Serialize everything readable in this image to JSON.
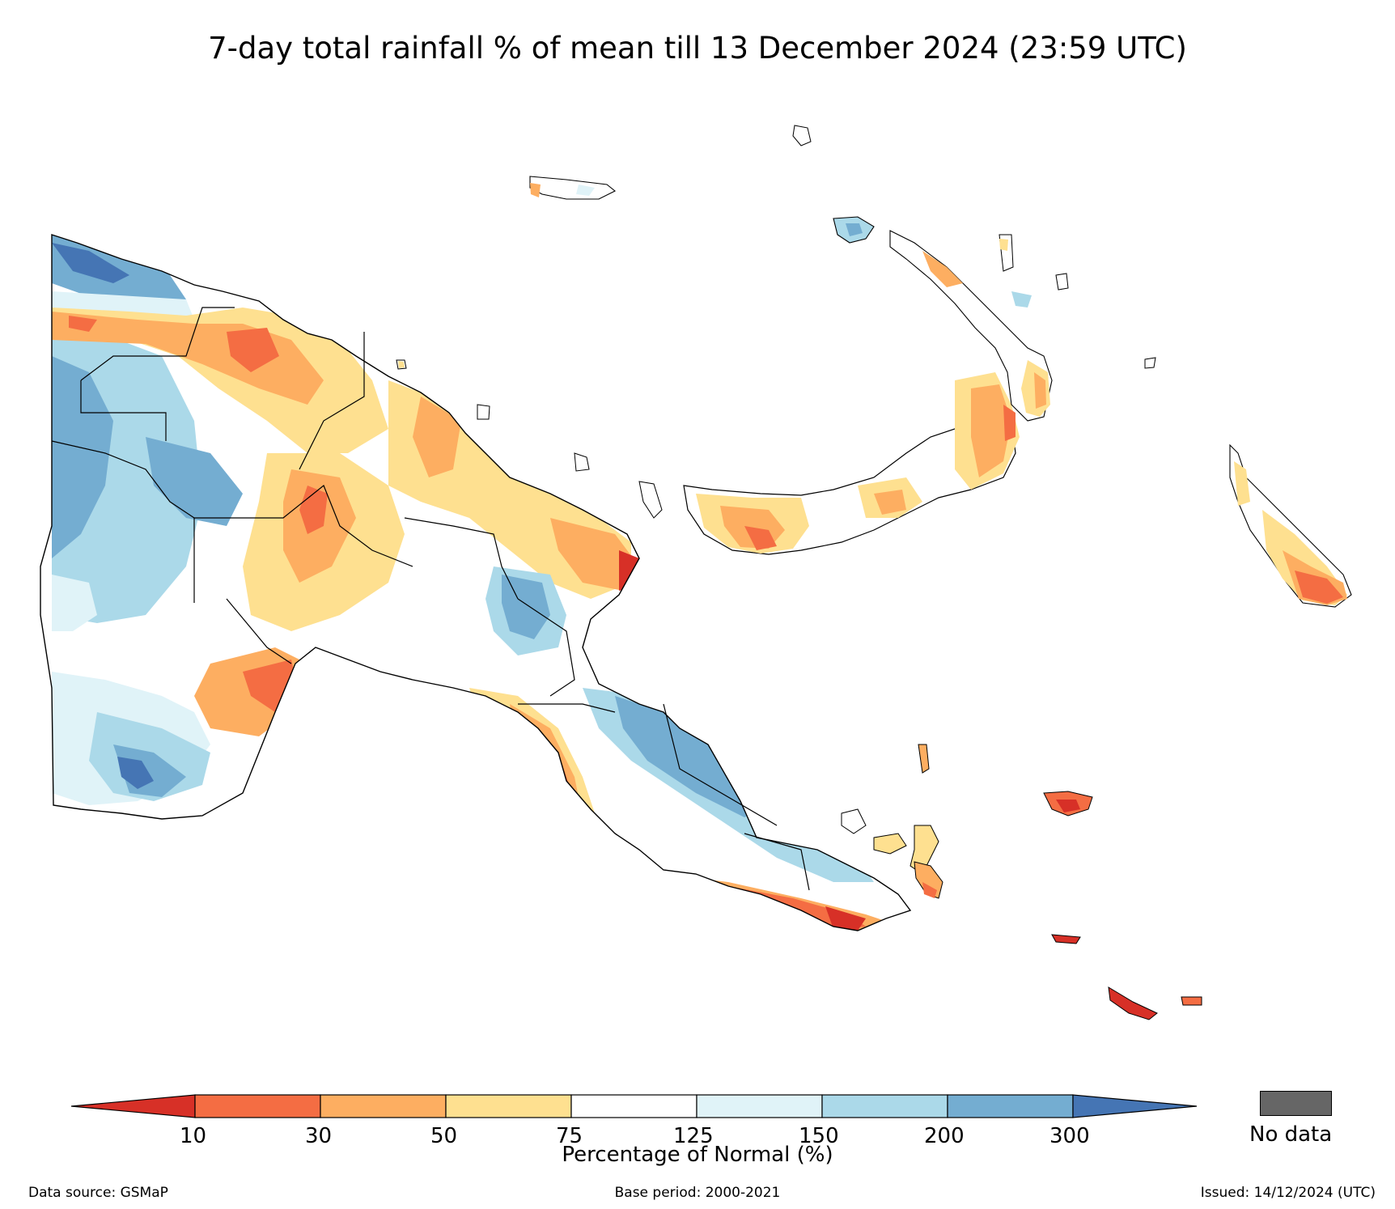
{
  "title": "7-day total rainfall % of mean till 13 December 2024 (23:59 UTC)",
  "colorbar": {
    "colors": [
      "#d73027",
      "#f46d43",
      "#fdae61",
      "#fee090",
      "#ffffff",
      "#e0f3f8",
      "#abd9e9",
      "#74add1",
      "#4575b4"
    ],
    "ticks": [
      "10",
      "30",
      "50",
      "75",
      "125",
      "150",
      "200",
      "300"
    ],
    "label": "Percentage of Normal (%)",
    "nodata_color": "#666666",
    "nodata_label": "No data"
  },
  "footer": {
    "source": "Data source: GSMaP",
    "base_period": "Base period: 2000-2021",
    "issued": "Issued: 14/12/2024 (UTC)"
  }
}
